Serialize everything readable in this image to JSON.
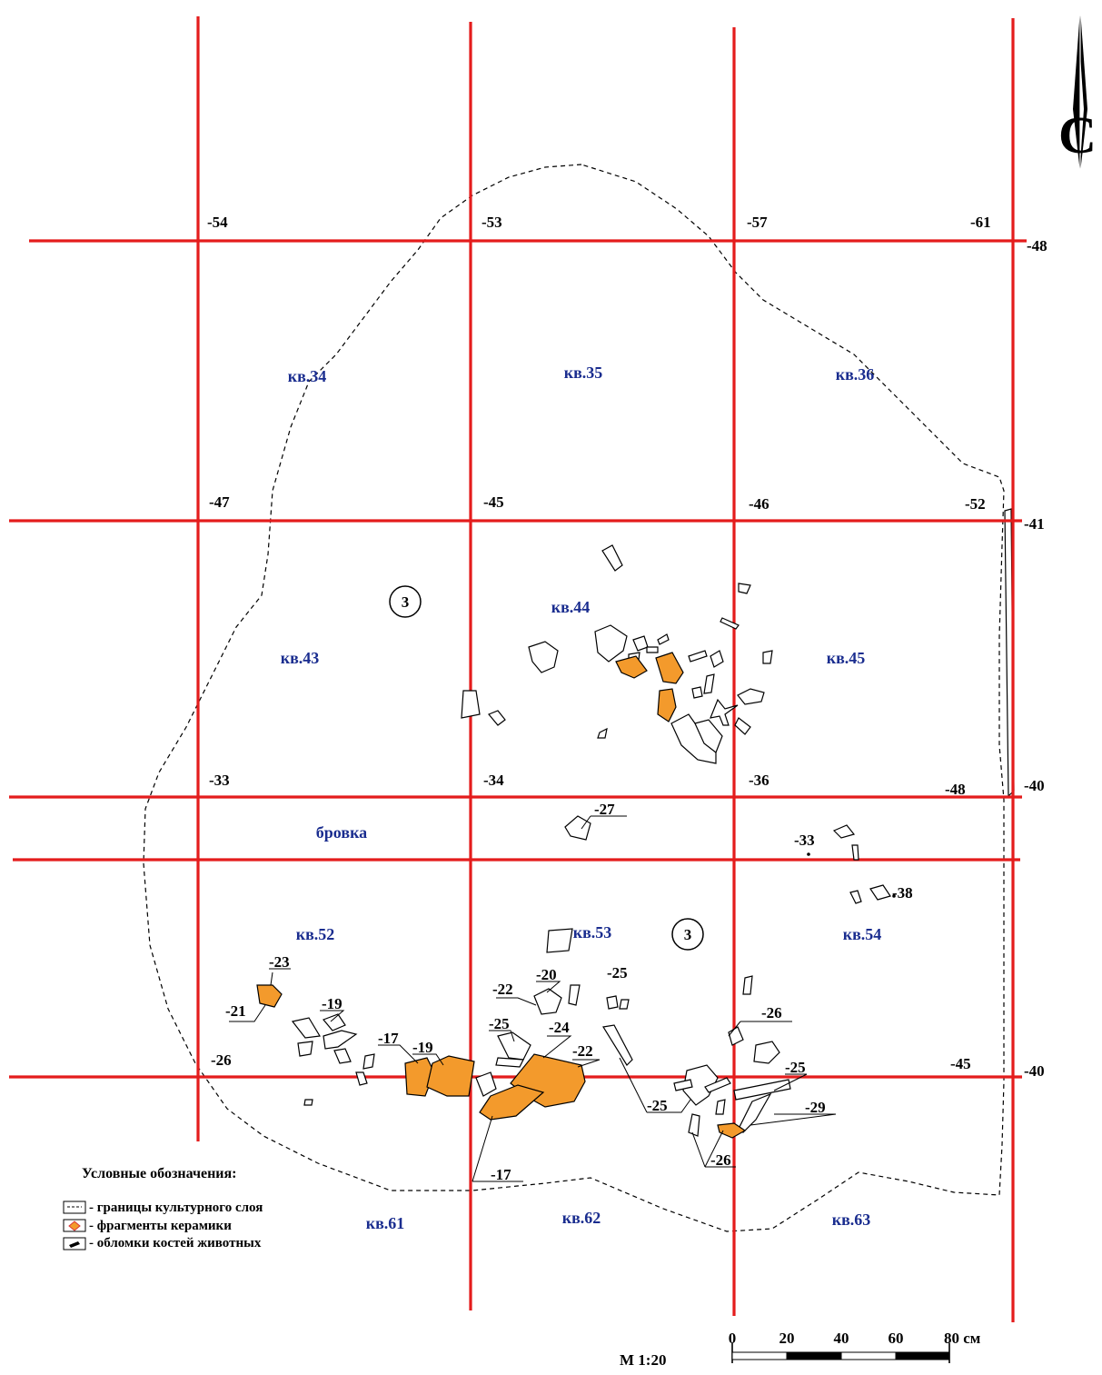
{
  "north_letter": "С",
  "grid_elevations": [
    {
      "id": "n54",
      "text": "-54"
    },
    {
      "id": "n53",
      "text": "-53"
    },
    {
      "id": "n57",
      "text": "-57"
    },
    {
      "id": "n61",
      "text": "-61"
    },
    {
      "id": "n48a",
      "text": "-48"
    },
    {
      "id": "n47",
      "text": "-47"
    },
    {
      "id": "n45a",
      "text": "-45"
    },
    {
      "id": "n46",
      "text": "-46"
    },
    {
      "id": "n52",
      "text": "-52"
    },
    {
      "id": "n41",
      "text": "-41"
    },
    {
      "id": "n33",
      "text": "-33"
    },
    {
      "id": "n34",
      "text": "-34"
    },
    {
      "id": "n36",
      "text": "-36"
    },
    {
      "id": "n48b",
      "text": "-48"
    },
    {
      "id": "n40a",
      "text": "-40"
    },
    {
      "id": "n26",
      "text": "-26"
    },
    {
      "id": "n45b",
      "text": "-45"
    },
    {
      "id": "n40b",
      "text": "-40"
    }
  ],
  "squares": [
    {
      "id": "s34",
      "text": "кв.34"
    },
    {
      "id": "s35",
      "text": "кв.35"
    },
    {
      "id": "s36",
      "text": "кв.36"
    },
    {
      "id": "s43",
      "text": "кв.43"
    },
    {
      "id": "s44",
      "text": "кв.44"
    },
    {
      "id": "s45",
      "text": "кв.45"
    },
    {
      "id": "sbrovka",
      "text": "бровка"
    },
    {
      "id": "s52",
      "text": "кв.52"
    },
    {
      "id": "s53",
      "text": "кв.53"
    },
    {
      "id": "s54",
      "text": "кв.54"
    },
    {
      "id": "s61",
      "text": "кв.61"
    },
    {
      "id": "s62",
      "text": "кв.62"
    },
    {
      "id": "s63",
      "text": "кв.63"
    }
  ],
  "find_depths": [
    {
      "id": "d27",
      "text": "-27"
    },
    {
      "id": "d33",
      "text": "-33"
    },
    {
      "id": "d38",
      "text": "-38"
    },
    {
      "id": "d23",
      "text": "-23"
    },
    {
      "id": "d21",
      "text": "-21"
    },
    {
      "id": "d19a",
      "text": "-19"
    },
    {
      "id": "d17a",
      "text": "-17"
    },
    {
      "id": "d19b",
      "text": "-19"
    },
    {
      "id": "d22a",
      "text": "-22"
    },
    {
      "id": "d20",
      "text": "-20"
    },
    {
      "id": "d25a",
      "text": "-25"
    },
    {
      "id": "d25b",
      "text": "-25"
    },
    {
      "id": "d24",
      "text": "-24"
    },
    {
      "id": "d22b",
      "text": "-22"
    },
    {
      "id": "d26a",
      "text": "-26"
    },
    {
      "id": "d25c",
      "text": "-25"
    },
    {
      "id": "d25d",
      "text": "-25"
    },
    {
      "id": "d29",
      "text": "-29"
    },
    {
      "id": "d26b",
      "text": "-26"
    },
    {
      "id": "d17b",
      "text": "-17"
    }
  ],
  "markers": [
    {
      "id": "m1",
      "text": "3"
    },
    {
      "id": "m2",
      "text": "3"
    }
  ],
  "legend": {
    "title": "Условные обозначения:",
    "items": [
      {
        "id": "boundary",
        "text": "- границы культурного слоя"
      },
      {
        "id": "ceramic",
        "text": "- фрагменты керамики"
      },
      {
        "id": "bone",
        "text": "-  обломки костей животных"
      }
    ]
  },
  "scale": {
    "ratio": "М 1:20",
    "ticks": [
      "0",
      "20",
      "40",
      "60",
      "80 см"
    ]
  },
  "colors": {
    "grid": "#e41c1c",
    "ceramic": "#f39a2c",
    "square_label": "#1a2d8f"
  }
}
